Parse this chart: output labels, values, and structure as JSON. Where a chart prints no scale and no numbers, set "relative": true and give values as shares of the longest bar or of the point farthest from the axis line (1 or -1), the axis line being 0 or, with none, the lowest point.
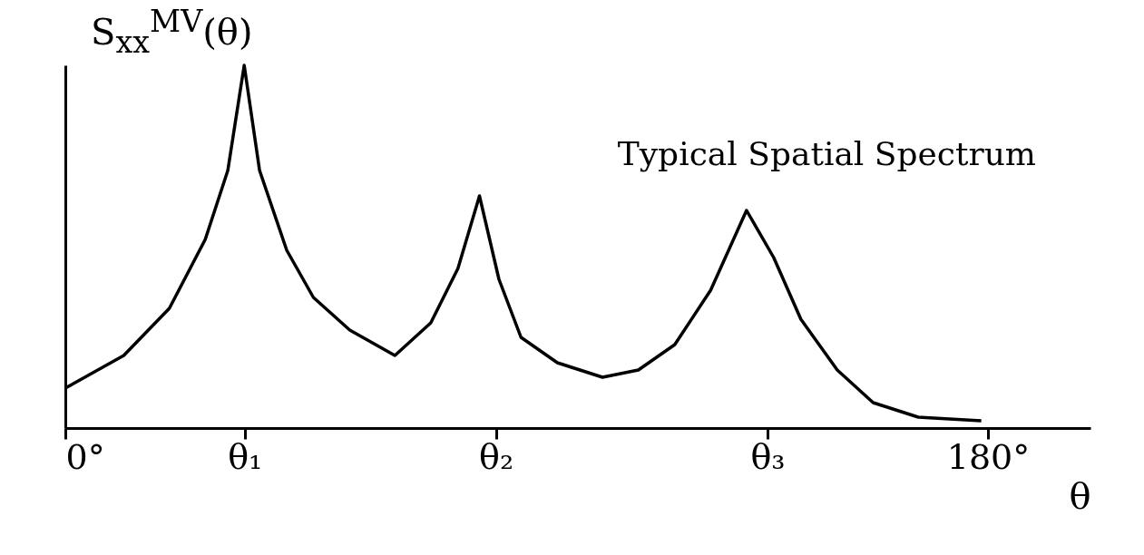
{
  "chart_data": {
    "type": "line",
    "title": "Typical Spatial Spectrum",
    "xlabel": "θ",
    "ylabel": "S$_{xx}$$^{MV}$(θ)",
    "relative": true,
    "xlim": [
      0,
      200
    ],
    "xticks": [
      {
        "value": 0,
        "label": "0°"
      },
      {
        "value": 35,
        "label": "θ₁"
      },
      {
        "value": 84,
        "label": "θ₂"
      },
      {
        "value": 137,
        "label": "θ₃"
      },
      {
        "value": 180,
        "label": "180°"
      }
    ],
    "x": [
      0,
      11.4,
      20.3,
      27.3,
      31.7,
      34.9,
      37.9,
      43.2,
      48.4,
      55.5,
      64.3,
      71.3,
      76.6,
      80.8,
      84.6,
      88.9,
      96,
      104.8,
      111.8,
      118.9,
      125.9,
      132.9,
      138.2,
      143.5,
      150.6,
      157.6,
      166.4,
      178.7
    ],
    "series": [
      {
        "color": "#000000",
        "values": [
          0.11,
          0.2,
          0.33,
          0.52,
          0.71,
          1.0,
          0.71,
          0.49,
          0.36,
          0.27,
          0.2,
          0.29,
          0.44,
          0.64,
          0.41,
          0.25,
          0.18,
          0.14,
          0.16,
          0.23,
          0.38,
          0.6,
          0.47,
          0.3,
          0.16,
          0.07,
          0.03,
          0.02
        ]
      }
    ],
    "grid": false,
    "legend": false,
    "marker": "none",
    "line_style": "solid"
  }
}
